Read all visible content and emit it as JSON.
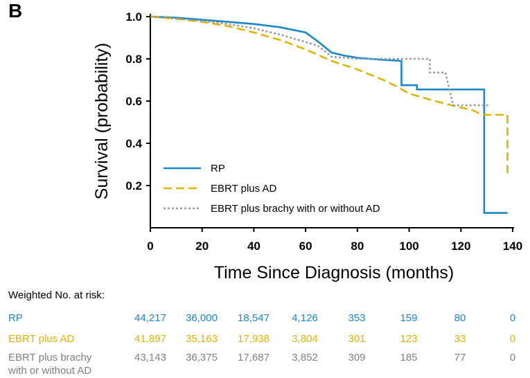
{
  "panel_label": "B",
  "chart_data": {
    "type": "line",
    "xlabel": "Time Since Diagnosis (months)",
    "ylabel": "Survival (probability)",
    "xlim": [
      0,
      140
    ],
    "ylim": [
      0,
      1.0
    ],
    "x_ticks": [
      "0",
      "20",
      "40",
      "60",
      "80",
      "100",
      "120",
      "140"
    ],
    "y_ticks": [
      "0.2",
      "0.4",
      "0.6",
      "0.8",
      "1.0"
    ],
    "legend_position": "bottom-left",
    "series": [
      {
        "name": "RP",
        "color": "#1a87c9",
        "style": "solid",
        "points": [
          [
            0,
            1.0
          ],
          [
            10,
            0.995
          ],
          [
            20,
            0.985
          ],
          [
            30,
            0.975
          ],
          [
            40,
            0.965
          ],
          [
            50,
            0.95
          ],
          [
            60,
            0.925
          ],
          [
            65,
            0.88
          ],
          [
            70,
            0.83
          ],
          [
            75,
            0.815
          ],
          [
            80,
            0.805
          ],
          [
            85,
            0.8
          ],
          [
            90,
            0.795
          ],
          [
            97,
            0.79
          ],
          [
            97,
            0.675
          ],
          [
            103,
            0.675
          ],
          [
            103,
            0.655
          ],
          [
            129,
            0.655
          ],
          [
            129,
            0.07
          ],
          [
            138,
            0.07
          ]
        ]
      },
      {
        "name": "EBRT plus AD",
        "color": "#e2b400",
        "style": "dashed",
        "points": [
          [
            0,
            1.0
          ],
          [
            10,
            0.99
          ],
          [
            20,
            0.975
          ],
          [
            30,
            0.955
          ],
          [
            40,
            0.925
          ],
          [
            50,
            0.89
          ],
          [
            60,
            0.845
          ],
          [
            70,
            0.79
          ],
          [
            75,
            0.77
          ],
          [
            80,
            0.75
          ],
          [
            90,
            0.7
          ],
          [
            95,
            0.67
          ],
          [
            100,
            0.635
          ],
          [
            110,
            0.6
          ],
          [
            118,
            0.575
          ],
          [
            125,
            0.555
          ],
          [
            128,
            0.535
          ],
          [
            138,
            0.535
          ],
          [
            138,
            0.25
          ]
        ]
      },
      {
        "name": "EBRT plus brachy with or without AD",
        "color": "#999999",
        "style": "dotted",
        "points": [
          [
            0,
            1.0
          ],
          [
            10,
            0.99
          ],
          [
            20,
            0.98
          ],
          [
            30,
            0.965
          ],
          [
            40,
            0.945
          ],
          [
            50,
            0.915
          ],
          [
            60,
            0.88
          ],
          [
            65,
            0.86
          ],
          [
            70,
            0.81
          ],
          [
            80,
            0.8
          ],
          [
            90,
            0.8
          ],
          [
            100,
            0.8
          ],
          [
            108,
            0.8
          ],
          [
            108,
            0.735
          ],
          [
            114,
            0.735
          ],
          [
            117,
            0.58
          ],
          [
            131,
            0.58
          ]
        ]
      }
    ]
  },
  "risk_table": {
    "heading": "Weighted No. at risk:",
    "rows": [
      {
        "label": "RP",
        "values": [
          "44,217",
          "36,000",
          "18,547",
          "4,126",
          "353",
          "159",
          "80",
          "0"
        ]
      },
      {
        "label": "EBRT plus AD",
        "values": [
          "41,897",
          "35,163",
          "17,938",
          "3,804",
          "301",
          "123",
          "33",
          "0"
        ]
      },
      {
        "label_line1": "EBRT plus brachy",
        "label_line2": "with or without AD",
        "values": [
          "43,143",
          "36,375",
          "17,687",
          "3,852",
          "309",
          "185",
          "77",
          "0"
        ]
      }
    ]
  }
}
